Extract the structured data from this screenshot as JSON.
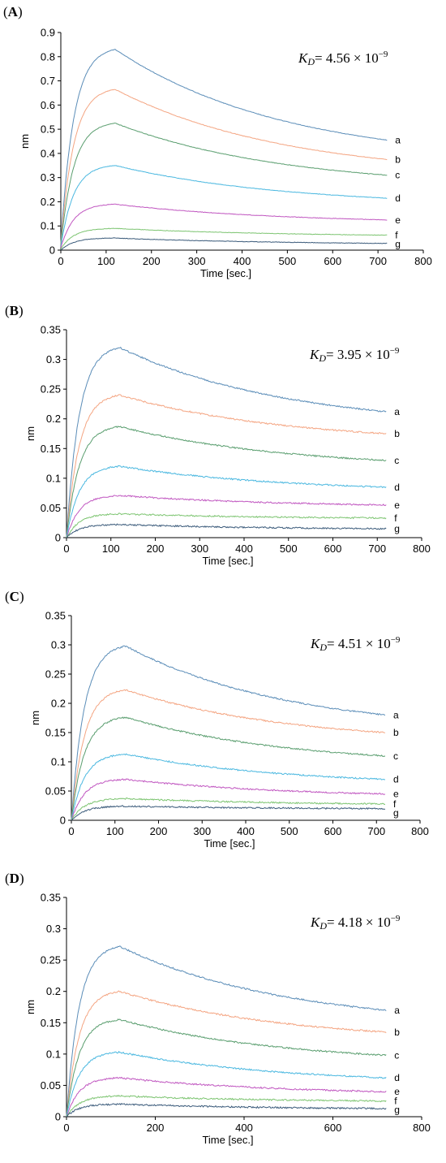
{
  "chart_data": [
    {
      "panel": "(A)",
      "type": "line",
      "kd_label": {
        "symbol": "K",
        "subscript": "D",
        "value": "= 4.56 × 10",
        "exponent": "−9"
      },
      "xlabel": "Time [sec.]",
      "ylabel": "nm",
      "xlim": [
        0,
        800
      ],
      "xticks": [
        0,
        100,
        200,
        300,
        400,
        500,
        600,
        700,
        800
      ],
      "ylim": [
        0,
        0.9
      ],
      "yticks": [
        "0",
        "0.1",
        "0.2",
        "0.3",
        "0.4",
        "0.5",
        "0.6",
        "0.7",
        "0.8",
        "0.9"
      ],
      "grid": false,
      "legend": "inline curve labels at right end",
      "peak_time": 120,
      "end_time": 720,
      "series": [
        {
          "name": "a",
          "color": "#5b8db8",
          "peak": 0.83,
          "end": 0.455,
          "start": 0.03
        },
        {
          "name": "b",
          "color": "#f4a582",
          "peak": 0.665,
          "end": 0.375,
          "start": 0.025
        },
        {
          "name": "c",
          "color": "#5a9e6f",
          "peak": 0.525,
          "end": 0.31,
          "start": 0.02
        },
        {
          "name": "d",
          "color": "#4bb8e0",
          "peak": 0.35,
          "end": 0.215,
          "start": 0.015
        },
        {
          "name": "e",
          "color": "#c056c0",
          "peak": 0.19,
          "end": 0.125,
          "start": 0.01
        },
        {
          "name": "f",
          "color": "#7cc470",
          "peak": 0.09,
          "end": 0.062,
          "start": 0.005
        },
        {
          "name": "g",
          "color": "#3a5a7a",
          "peak": 0.05,
          "end": 0.028,
          "start": 0.0
        }
      ]
    },
    {
      "panel": "(B)",
      "type": "line",
      "kd_label": {
        "symbol": "K",
        "subscript": "D",
        "value": "= 3.95 × 10",
        "exponent": "−9"
      },
      "xlabel": "Time [sec.]",
      "ylabel": "nm",
      "xlim": [
        0,
        800
      ],
      "xticks": [
        0,
        100,
        200,
        300,
        400,
        500,
        600,
        700,
        800
      ],
      "ylim": [
        0,
        0.35
      ],
      "yticks": [
        "0",
        "0.05",
        "0.1",
        "0.15",
        "0.2",
        "0.25",
        "0.3",
        "0.35"
      ],
      "grid": false,
      "legend": "inline curve labels at right end",
      "peak_time": 120,
      "end_time": 720,
      "series": [
        {
          "name": "a",
          "color": "#5b8db8",
          "peak": 0.32,
          "end": 0.212,
          "start": 0.0
        },
        {
          "name": "b",
          "color": "#f4a582",
          "peak": 0.24,
          "end": 0.175,
          "start": 0.0
        },
        {
          "name": "c",
          "color": "#5a9e6f",
          "peak": 0.187,
          "end": 0.13,
          "start": 0.0
        },
        {
          "name": "d",
          "color": "#4bb8e0",
          "peak": 0.12,
          "end": 0.085,
          "start": 0.0
        },
        {
          "name": "e",
          "color": "#c056c0",
          "peak": 0.071,
          "end": 0.055,
          "start": 0.0
        },
        {
          "name": "f",
          "color": "#7cc470",
          "peak": 0.04,
          "end": 0.033,
          "start": 0.0
        },
        {
          "name": "g",
          "color": "#3a5a7a",
          "peak": 0.022,
          "end": 0.015,
          "start": 0.0
        }
      ]
    },
    {
      "panel": "(C)",
      "type": "line",
      "kd_label": {
        "symbol": "K",
        "subscript": "D",
        "value": "= 4.51 × 10",
        "exponent": "−9"
      },
      "xlabel": "Time [sec.]",
      "ylabel": "nm",
      "xlim": [
        0,
        800
      ],
      "xticks": [
        0,
        100,
        200,
        300,
        400,
        500,
        600,
        700,
        800
      ],
      "ylim": [
        0,
        0.35
      ],
      "yticks": [
        "0",
        "0.05",
        "0.1",
        "0.15",
        "0.2",
        "0.25",
        "0.3",
        "0.35"
      ],
      "grid": false,
      "legend": "inline curve labels at right end",
      "peak_time": 125,
      "end_time": 720,
      "series": [
        {
          "name": "a",
          "color": "#5b8db8",
          "peak": 0.298,
          "end": 0.18,
          "start": 0.0
        },
        {
          "name": "b",
          "color": "#f4a582",
          "peak": 0.223,
          "end": 0.15,
          "start": 0.0
        },
        {
          "name": "c",
          "color": "#5a9e6f",
          "peak": 0.176,
          "end": 0.11,
          "start": 0.0
        },
        {
          "name": "d",
          "color": "#4bb8e0",
          "peak": 0.113,
          "end": 0.07,
          "start": 0.0
        },
        {
          "name": "e",
          "color": "#c056c0",
          "peak": 0.07,
          "end": 0.045,
          "start": 0.0
        },
        {
          "name": "f",
          "color": "#7cc470",
          "peak": 0.037,
          "end": 0.028,
          "start": 0.0
        },
        {
          "name": "g",
          "color": "#3a5a7a",
          "peak": 0.024,
          "end": 0.02,
          "start": 0.0
        }
      ]
    },
    {
      "panel": "(D)",
      "type": "line",
      "kd_label": {
        "symbol": "K",
        "subscript": "D",
        "value": "= 4.18 × 10",
        "exponent": "−9"
      },
      "xlabel": "Time [sec.]",
      "ylabel": "nm",
      "xlim": [
        0,
        800
      ],
      "xticks": [
        0,
        200,
        400,
        600,
        800
      ],
      "ylim": [
        0,
        0.35
      ],
      "yticks": [
        "0",
        "0.05",
        "0.1",
        "0.15",
        "0.2",
        "0.25",
        "0.3",
        "0.35"
      ],
      "grid": false,
      "legend": "inline curve labels at right end",
      "peak_time": 120,
      "end_time": 720,
      "series": [
        {
          "name": "a",
          "color": "#5b8db8",
          "peak": 0.272,
          "end": 0.17,
          "start": 0.0
        },
        {
          "name": "b",
          "color": "#f4a582",
          "peak": 0.2,
          "end": 0.135,
          "start": 0.0
        },
        {
          "name": "c",
          "color": "#5a9e6f",
          "peak": 0.155,
          "end": 0.098,
          "start": 0.0
        },
        {
          "name": "d",
          "color": "#4bb8e0",
          "peak": 0.103,
          "end": 0.062,
          "start": 0.0
        },
        {
          "name": "e",
          "color": "#c056c0",
          "peak": 0.062,
          "end": 0.04,
          "start": 0.0
        },
        {
          "name": "f",
          "color": "#7cc470",
          "peak": 0.033,
          "end": 0.025,
          "start": 0.0
        },
        {
          "name": "g",
          "color": "#3a5a7a",
          "peak": 0.02,
          "end": 0.013,
          "start": 0.0
        }
      ]
    }
  ]
}
